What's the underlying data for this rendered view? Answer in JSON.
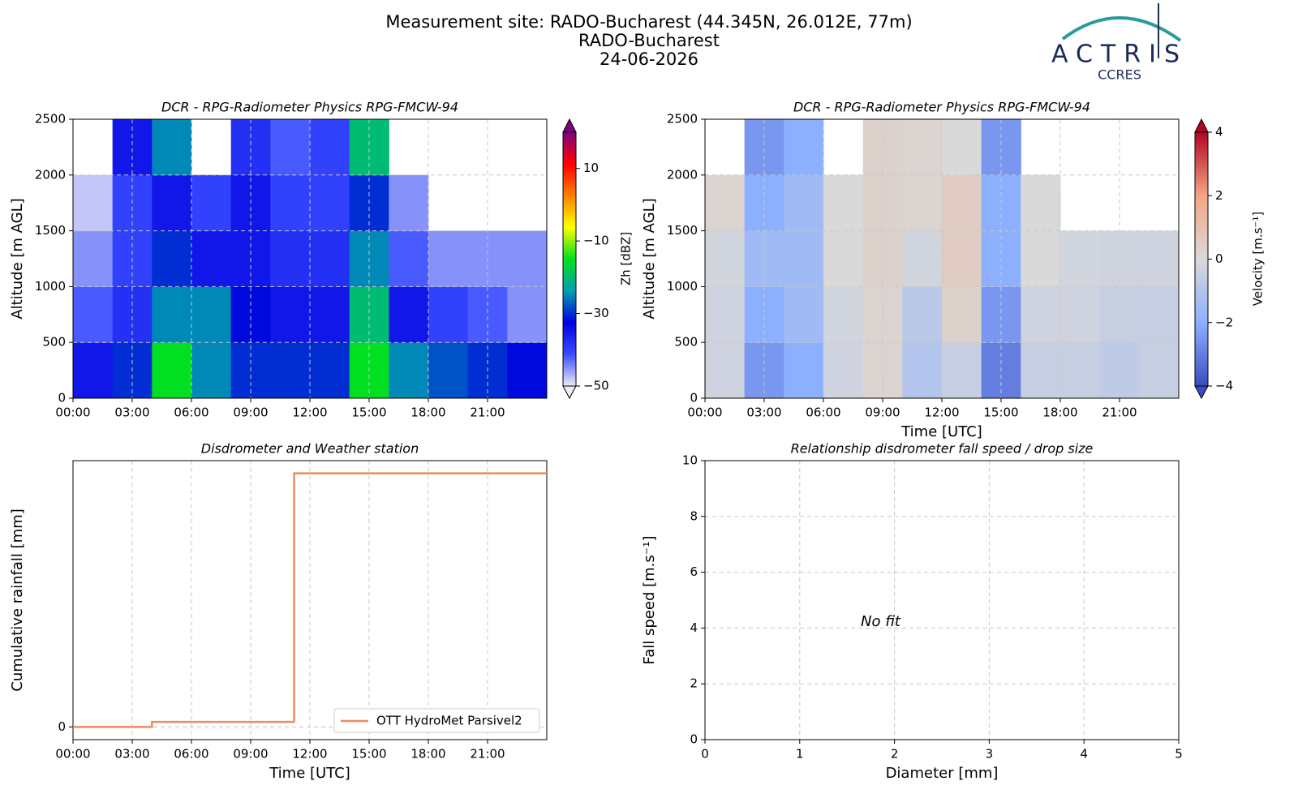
{
  "header": {
    "lines": [
      "Measurement site: RADO-Bucharest (44.345N, 26.012E, 77m)",
      "RADO-Bucharest",
      "24-06-2026"
    ],
    "logo": "ACTRIS",
    "logo_sub": "CCRES"
  },
  "chart_data": [
    {
      "type": "heatmap",
      "title": "DCR - RPG-Radiometer Physics RPG-FMCW-94",
      "ylabel": "Altitude [m AGL]",
      "xbins": [
        0,
        2,
        4,
        6,
        8,
        10,
        12,
        14,
        16,
        18,
        20,
        22,
        24
      ],
      "ybins": [
        0,
        500,
        1000,
        1500,
        2000,
        2500
      ],
      "z": [
        [
          -35,
          -30,
          -15,
          -25,
          -30,
          -30,
          -30,
          -15,
          -25,
          -28,
          -30,
          -32
        ],
        [
          -42,
          -38,
          -25,
          -25,
          -32,
          -35,
          -35,
          -20,
          -35,
          -40,
          -42,
          -45
        ],
        [
          -45,
          -40,
          -30,
          -35,
          -35,
          -38,
          -38,
          -25,
          -42,
          -45,
          -45,
          -45
        ],
        [
          -48,
          -40,
          -35,
          -40,
          -35,
          -40,
          -40,
          -30,
          -45,
          null,
          null,
          null
        ],
        [
          null,
          -35,
          -25,
          null,
          -38,
          -42,
          -40,
          -20,
          null,
          null,
          null,
          null
        ]
      ],
      "xlim": [
        0,
        24
      ],
      "ylim": [
        0,
        2500
      ],
      "xticks": [
        {
          "value": 0,
          "label": "00:00"
        },
        {
          "value": 3,
          "label": "03:00"
        },
        {
          "value": 6,
          "label": "06:00"
        },
        {
          "value": 9,
          "label": "09:00"
        },
        {
          "value": 12,
          "label": "12:00"
        },
        {
          "value": 15,
          "label": "15:00"
        },
        {
          "value": 18,
          "label": "18:00"
        },
        {
          "value": 21,
          "label": "21:00"
        }
      ],
      "yticks": [
        0,
        500,
        1000,
        1500,
        2000,
        2500
      ],
      "grid": true,
      "colorbar": {
        "label": "Zh [dBZ]",
        "clim": [
          -50,
          20
        ],
        "ticks": [
          {
            "value": -50,
            "label": "−50"
          },
          {
            "value": -30,
            "label": "−30"
          },
          {
            "value": -10,
            "label": "−10"
          },
          10
        ],
        "colors": [
          "#ececf4",
          "#3a4cff",
          "#0000e0",
          "#00a0b0",
          "#00e020",
          "#ffff00",
          "#ff8000",
          "#ff0000",
          "#800080"
        ]
      }
    },
    {
      "type": "heatmap",
      "title": "DCR - RPG-Radiometer Physics RPG-FMCW-94",
      "xlabel": "Time [UTC]",
      "ylabel": "Altitude [m AGL]",
      "xbins": [
        0,
        2,
        4,
        6,
        8,
        10,
        12,
        14,
        16,
        18,
        20,
        22,
        24
      ],
      "ybins": [
        0,
        500,
        1000,
        1500,
        2000,
        2500
      ],
      "z": [
        [
          -0.3,
          -2.5,
          -2,
          -0.3,
          0.2,
          -1,
          -0.5,
          -3,
          -0.5,
          -0.5,
          -0.7,
          -0.5
        ],
        [
          -0.3,
          -2,
          -1.5,
          -0.2,
          0.2,
          -0.8,
          0.3,
          -2.5,
          -0.3,
          -0.3,
          -0.5,
          -0.5
        ],
        [
          -0.2,
          -1.5,
          -1.5,
          0,
          0.3,
          -0.2,
          0.5,
          -2,
          0,
          -0.2,
          -0.3,
          -0.3
        ],
        [
          0.2,
          -2,
          -1.5,
          0,
          0.3,
          0.2,
          0.5,
          -2,
          0,
          null,
          null,
          null
        ],
        [
          null,
          -2.5,
          -2,
          null,
          0.3,
          0.2,
          0,
          -2.5,
          null,
          null,
          null,
          null
        ]
      ],
      "xlim": [
        0,
        24
      ],
      "ylim": [
        0,
        2500
      ],
      "xticks": [
        {
          "value": 0,
          "label": "00:00"
        },
        {
          "value": 3,
          "label": "03:00"
        },
        {
          "value": 6,
          "label": "06:00"
        },
        {
          "value": 9,
          "label": "09:00"
        },
        {
          "value": 12,
          "label": "12:00"
        },
        {
          "value": 15,
          "label": "15:00"
        },
        {
          "value": 18,
          "label": "18:00"
        },
        {
          "value": 21,
          "label": "21:00"
        }
      ],
      "yticks": [
        0,
        500,
        1000,
        1500,
        2000,
        2500
      ],
      "grid": true,
      "colorbar": {
        "label": "Velocity [m.s⁻¹]",
        "clim": [
          -4,
          4
        ],
        "ticks": [
          {
            "value": -4,
            "label": "−4"
          },
          {
            "value": -2,
            "label": "−2"
          },
          0,
          2,
          4
        ],
        "colors": [
          "#3b4cc0",
          "#8db0fe",
          "#d9d9d9",
          "#f4a582",
          "#b40426"
        ]
      }
    },
    {
      "type": "line",
      "title": "Disdrometer and Weather station",
      "xlabel": "Time [UTC]",
      "ylabel": "Cumulative rainfall [mm]",
      "x": [
        0,
        4,
        4,
        11.2,
        11.2,
        24
      ],
      "series": [
        {
          "name": "OTT HydroMet Parsivel2",
          "color": "#ee8a5e",
          "values": [
            0,
            0,
            0.02,
            0.02,
            1.0,
            1.0
          ]
        }
      ],
      "xlim": [
        0,
        24
      ],
      "ylim": [
        -0.05,
        1.05
      ],
      "xticks": [
        {
          "value": 0,
          "label": "00:00"
        },
        {
          "value": 3,
          "label": "03:00"
        },
        {
          "value": 6,
          "label": "06:00"
        },
        {
          "value": 9,
          "label": "09:00"
        },
        {
          "value": 12,
          "label": "12:00"
        },
        {
          "value": 15,
          "label": "15:00"
        },
        {
          "value": 18,
          "label": "18:00"
        },
        {
          "value": 21,
          "label": "21:00"
        }
      ],
      "yticks": [
        0
      ],
      "grid": true,
      "legend": "lower right"
    },
    {
      "type": "scatter",
      "title": "Relationship disdrometer fall speed / drop size",
      "xlabel": "Diameter [mm]",
      "ylabel": "Fall speed [m.s⁻¹]",
      "annotation": "No fit",
      "xlim": [
        0,
        5
      ],
      "ylim": [
        0,
        10
      ],
      "xticks": [
        0,
        1,
        2,
        3,
        4,
        5
      ],
      "yticks": [
        0,
        2,
        4,
        6,
        8,
        10
      ],
      "grid": true
    }
  ]
}
